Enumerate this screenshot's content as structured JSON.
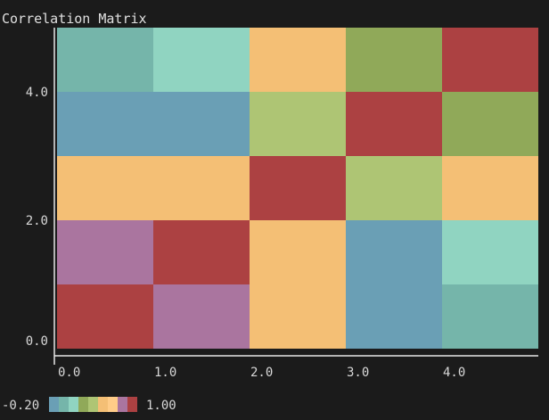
{
  "chart_data": {
    "type": "heatmap",
    "title": "Correlation Matrix",
    "x_ticks": [
      "0.0",
      "1.0",
      "2.0",
      "3.0",
      "4.0"
    ],
    "y_ticks": [
      "0.0",
      "2.0",
      "4.0"
    ],
    "x_tick_values": [
      0,
      1,
      2,
      3,
      4
    ],
    "y_tick_values": [
      0,
      2,
      4
    ],
    "xlim": [
      0,
      5
    ],
    "ylim": [
      0,
      5
    ],
    "rows_bottom_to_top": [
      [
        1.0,
        0.8,
        0.55,
        -0.15,
        0.05
      ],
      [
        0.8,
        1.0,
        0.5,
        -0.15,
        0.1
      ],
      [
        0.55,
        0.5,
        1.0,
        0.35,
        0.5
      ],
      [
        -0.15,
        -0.15,
        0.35,
        1.0,
        0.3
      ],
      [
        0.05,
        0.1,
        0.5,
        0.3,
        1.0
      ]
    ],
    "colorbar": {
      "min": -0.2,
      "max": 1.0,
      "min_label": "-0.20",
      "max_label": "1.00",
      "position": "bottom-left"
    },
    "colormap": [
      "#6a9fb5",
      "#75b5aa",
      "#90d4c1",
      "#90a959",
      "#aec574",
      "#f4bf75",
      "#ffcc88",
      "#aa759f",
      "#ac4142"
    ],
    "grid": false
  }
}
